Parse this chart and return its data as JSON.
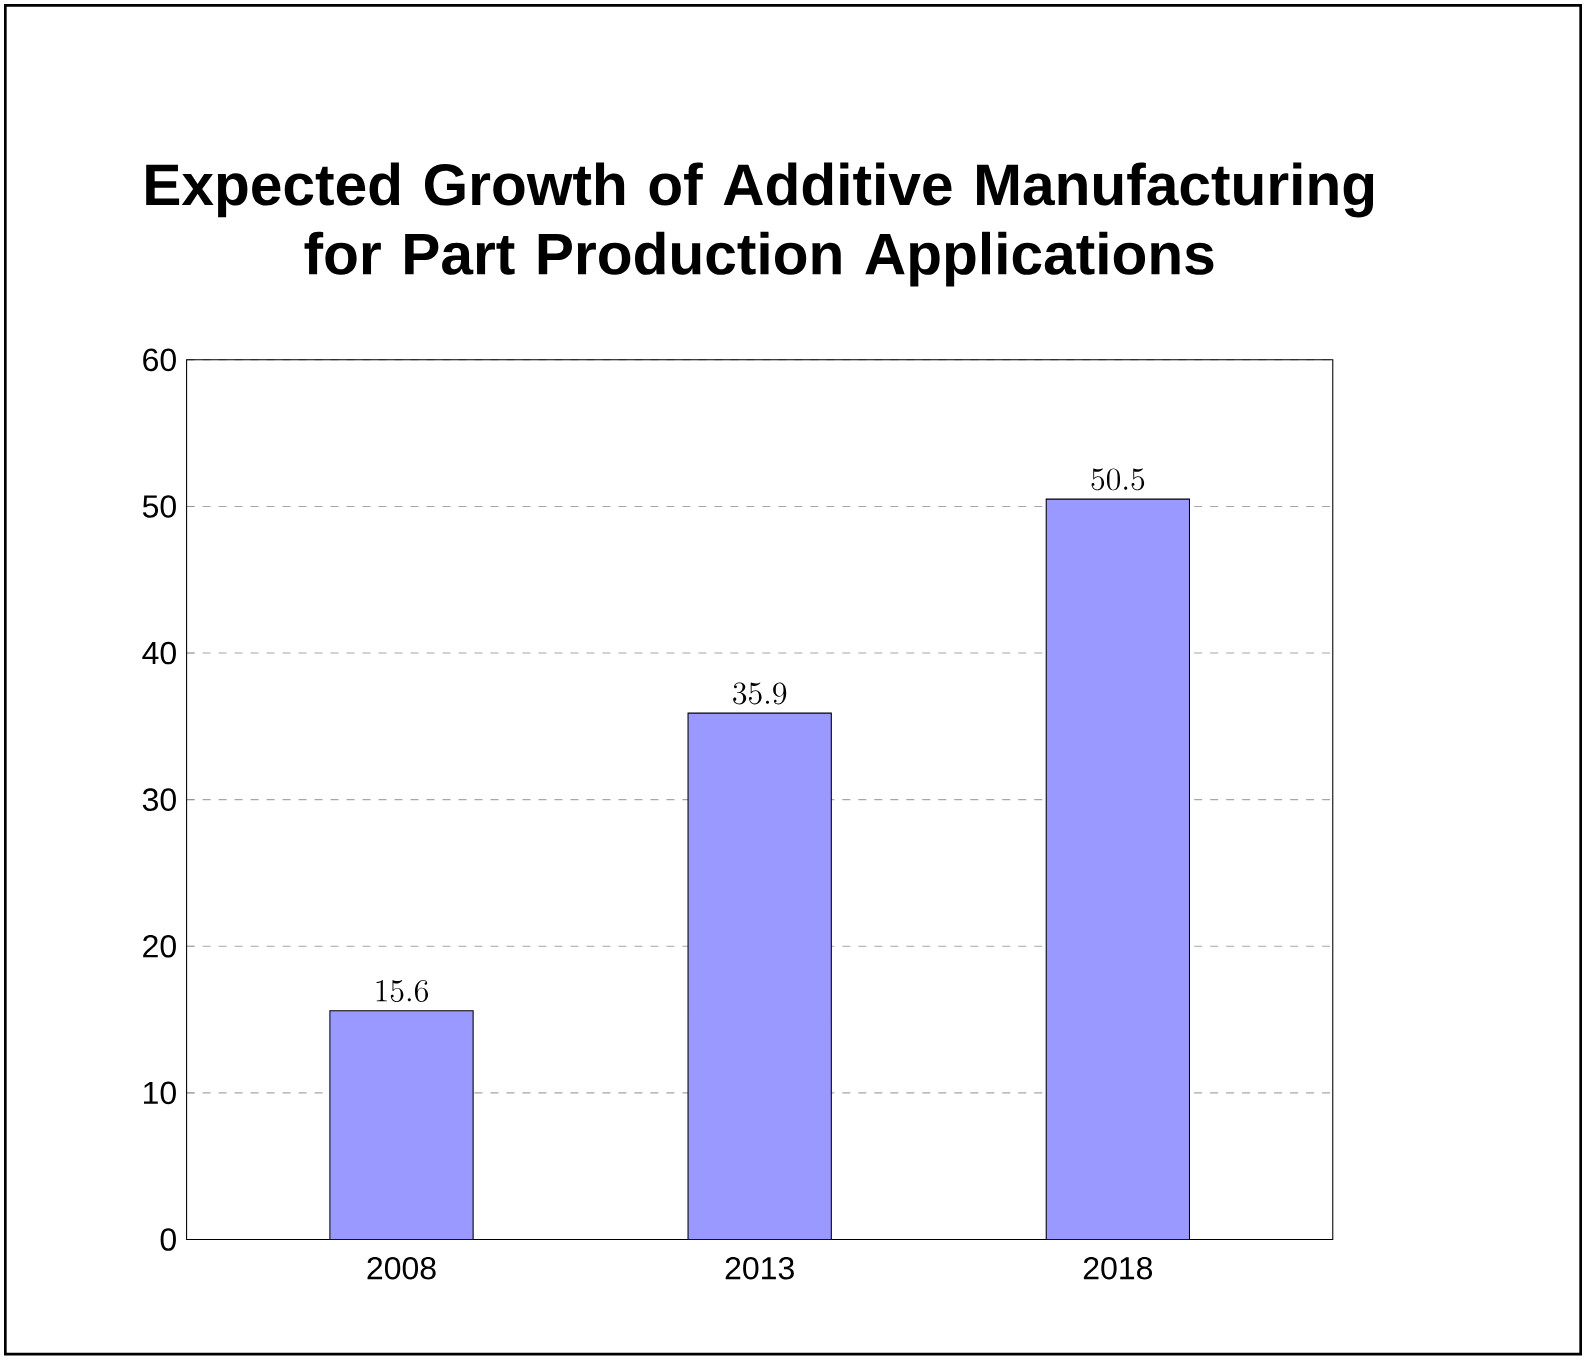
{
  "chart_data": {
    "type": "bar",
    "title": "Expected Growth of Additive Manufacturing for Part Production Applications",
    "categories": [
      "2008",
      "2013",
      "2018"
    ],
    "values": [
      15.6,
      35.9,
      50.5
    ],
    "color": "#9999ff",
    "ylim": [
      0,
      60
    ],
    "yticks": [
      0,
      10,
      20,
      30,
      40,
      50,
      60
    ],
    "grid": "y",
    "data_labels": true
  }
}
